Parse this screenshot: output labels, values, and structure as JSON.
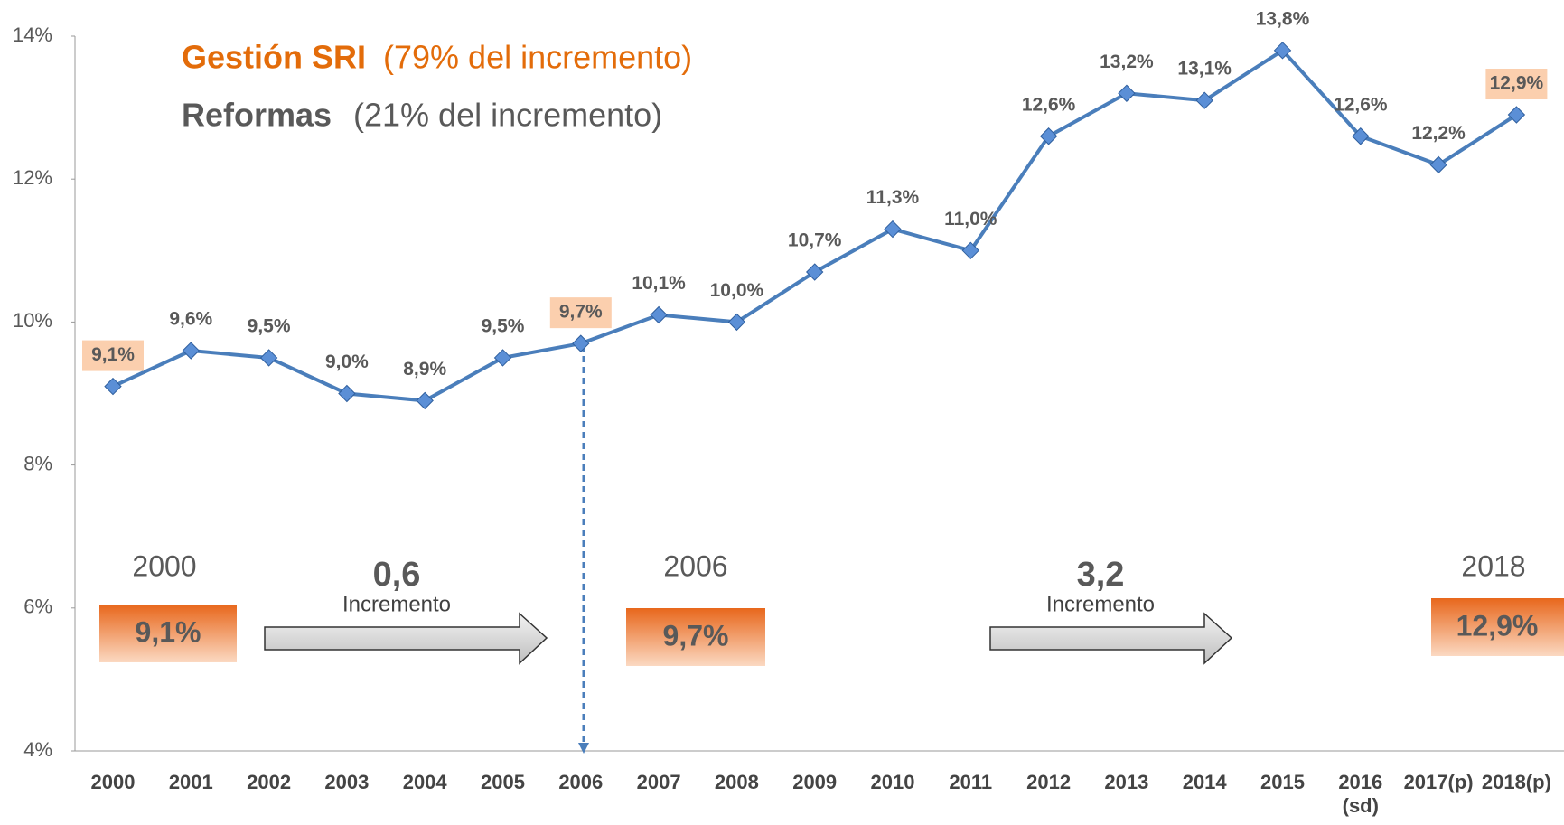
{
  "chart_data": {
    "type": "line",
    "categories": [
      "2000",
      "2001",
      "2002",
      "2003",
      "2004",
      "2005",
      "2006",
      "2007",
      "2008",
      "2009",
      "2010",
      "2011",
      "2012",
      "2013",
      "2014",
      "2015",
      "2016 (sd)",
      "2017(p)",
      "2018(p)"
    ],
    "series": [
      {
        "name": null,
        "color": "#4a7ebb",
        "values": [
          9.1,
          9.6,
          9.5,
          9.0,
          8.9,
          9.5,
          9.7,
          10.1,
          10.0,
          10.7,
          11.3,
          11.0,
          12.6,
          13.2,
          13.1,
          13.8,
          12.6,
          12.2,
          12.9
        ],
        "value_labels": [
          "9,1%",
          "9,6%",
          "9,5%",
          "9,0%",
          "8,9%",
          "9,5%",
          "9,7%",
          "10,1%",
          "10,0%",
          "10,7%",
          "11,3%",
          "11,0%",
          "12,6%",
          "13,2%",
          "13,1%",
          "13,8%",
          "12,6%",
          "12,2%",
          "12,9%"
        ]
      }
    ],
    "highlight_indices": [
      0,
      6,
      18
    ],
    "ylim": [
      4,
      14
    ],
    "yticks": [
      {
        "value": 4,
        "label": "4%"
      },
      {
        "value": 6,
        "label": "6%"
      },
      {
        "value": 8,
        "label": "8%"
      },
      {
        "value": 10,
        "label": "10%"
      },
      {
        "value": 12,
        "label": "12%"
      },
      {
        "value": 14,
        "label": "14%"
      }
    ],
    "legend_text": {
      "gestion": "Gestión SRI",
      "gestion_share": "(79% del incremento)",
      "reformas": "Reformas",
      "reformas_share": "(21% del incremento)"
    },
    "summary": {
      "start_year": "2000",
      "start_value": "9,1%",
      "first_increase": "0,6",
      "first_increase_label": "Incremento",
      "mid_year": "2006",
      "mid_value": "9,7%",
      "second_increase": "3,2",
      "second_increase_label": "Incremento",
      "end_year": "2018",
      "end_value": "12,9%"
    }
  }
}
